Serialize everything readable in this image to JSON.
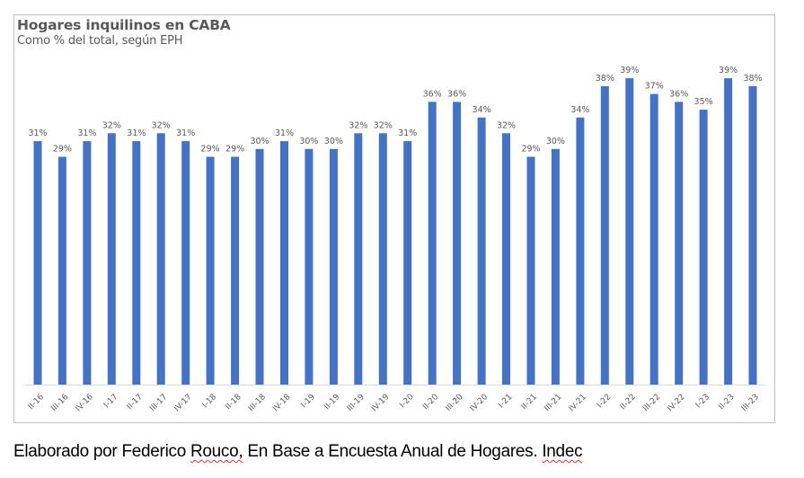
{
  "chart_data": {
    "type": "bar",
    "title": "Hogares inquilinos en CABA",
    "subtitle": "Como % del total, según EPH",
    "xlabel": "",
    "ylabel": "",
    "ylim": [
      0,
      40
    ],
    "grid": false,
    "legend": "none",
    "bar_color": "#4472C4",
    "value_suffix": "%",
    "categories": [
      "II-16",
      "III-16",
      "IV-16",
      "I-17",
      "II-17",
      "III-17",
      "IV-17",
      "I-18",
      "II-18",
      "III-18",
      "IV-18",
      "I-19",
      "II-19",
      "III-19",
      "IV-19",
      "I-20",
      "II-20",
      "III-20",
      "IV-20",
      "I-21",
      "II-21",
      "III-21",
      "IV-21",
      "I-22",
      "II-22",
      "III-22",
      "IV-22",
      "I-23",
      "II-23",
      "III-23"
    ],
    "values": [
      31,
      29,
      31,
      32,
      31,
      32,
      31,
      29,
      29,
      30,
      31,
      30,
      30,
      32,
      32,
      31,
      36,
      36,
      34,
      32,
      29,
      30,
      34,
      38,
      39,
      37,
      36,
      35,
      39,
      38
    ]
  },
  "caption": {
    "part1": "Elaborado por Federico ",
    "misspelled1": "Rouco,",
    "part2": " En Base a Encuesta Anual de Hogares. ",
    "misspelled2": "Indec"
  }
}
